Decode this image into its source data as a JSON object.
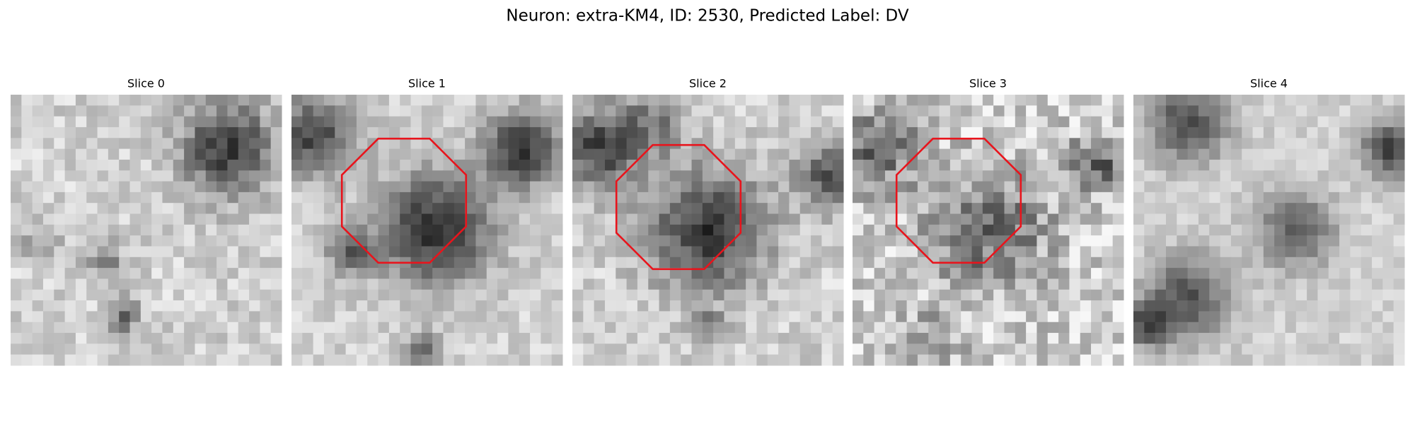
{
  "title": "Neuron: extra-KM4, ID: 2530, Predicted Label: DV",
  "panels": [
    {
      "title": "Slice 0"
    },
    {
      "title": "Slice 1"
    },
    {
      "title": "Slice 2"
    },
    {
      "title": "Slice 3"
    },
    {
      "title": "Slice 4"
    }
  ]
}
